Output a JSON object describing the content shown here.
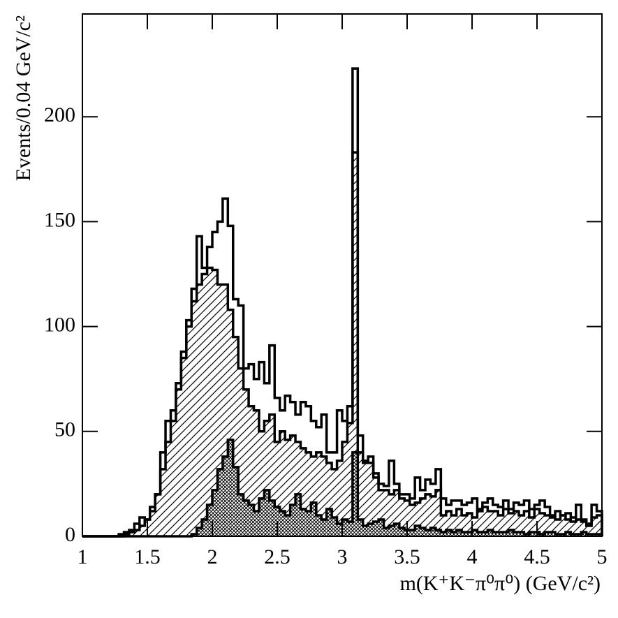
{
  "chart_data": {
    "type": "histogram",
    "xlabel": "m(K⁺K⁻π⁰π⁰) (GeV/c²)",
    "ylabel": "Events/0.04 GeV/c²",
    "bins": [
      1.0,
      1.04,
      1.08,
      1.12,
      1.16,
      1.2,
      1.24,
      1.28,
      1.32,
      1.36,
      1.4,
      1.44,
      1.48,
      1.52,
      1.56,
      1.6,
      1.64,
      1.68,
      1.72,
      1.76,
      1.8,
      1.84,
      1.88,
      1.92,
      1.96,
      2.0,
      2.04,
      2.08,
      2.12,
      2.16,
      2.2,
      2.24,
      2.28,
      2.32,
      2.36,
      2.4,
      2.44,
      2.48,
      2.52,
      2.56,
      2.6,
      2.64,
      2.68,
      2.72,
      2.76,
      2.8,
      2.84,
      2.88,
      2.92,
      2.96,
      3.0,
      3.04,
      3.08,
      3.12,
      3.16,
      3.2,
      3.24,
      3.28,
      3.32,
      3.36,
      3.4,
      3.44,
      3.48,
      3.52,
      3.56,
      3.6,
      3.64,
      3.68,
      3.72,
      3.76,
      3.8,
      3.84,
      3.88,
      3.92,
      3.96,
      4.0,
      4.04,
      4.08,
      4.12,
      4.16,
      4.2,
      4.24,
      4.28,
      4.32,
      4.36,
      4.4,
      4.44,
      4.48,
      4.52,
      4.56,
      4.6,
      4.64,
      4.68,
      4.72,
      4.76,
      4.8,
      4.84,
      4.88,
      4.92,
      4.96,
      5.0
    ],
    "series": [
      {
        "color": "#000000",
        "pattern": "none",
        "values": [
          0,
          0,
          0,
          0,
          0,
          0,
          0,
          1,
          2,
          3,
          6,
          9,
          8,
          14,
          20,
          40,
          55,
          60,
          73,
          88,
          103,
          118,
          143,
          128,
          138,
          145,
          150,
          161,
          148,
          113,
          110,
          80,
          82,
          75,
          83,
          73,
          91,
          66,
          60,
          67,
          64,
          58,
          64,
          62,
          55,
          52,
          58,
          40,
          40,
          60,
          55,
          62,
          223,
          48,
          36,
          38,
          30,
          25,
          24,
          36,
          25,
          20,
          20,
          18,
          28,
          22,
          27,
          25,
          32,
          18,
          15,
          17,
          17,
          15,
          16,
          18,
          13,
          16,
          18,
          15,
          14,
          17,
          13,
          16,
          15,
          17,
          13,
          15,
          17,
          14,
          10,
          12,
          10,
          11,
          9,
          15,
          8,
          6,
          15,
          12
        ]
      },
      {
        "color": "#000000",
        "pattern": "diagonal",
        "values": [
          0,
          0,
          0,
          0,
          0,
          0,
          0,
          0,
          1,
          2,
          3,
          5,
          8,
          12,
          20,
          32,
          45,
          55,
          70,
          85,
          100,
          112,
          120,
          125,
          128,
          127,
          120,
          120,
          108,
          95,
          80,
          70,
          62,
          60,
          50,
          55,
          58,
          45,
          50,
          46,
          48,
          45,
          42,
          40,
          38,
          40,
          38,
          35,
          32,
          36,
          45,
          54,
          183,
          40,
          35,
          35,
          28,
          22,
          22,
          20,
          22,
          18,
          17,
          15,
          16,
          18,
          20,
          19,
          22,
          10,
          12,
          10,
          13,
          10,
          11,
          9,
          12,
          14,
          12,
          12,
          10,
          13,
          11,
          12,
          10,
          12,
          9,
          13,
          11,
          10,
          9,
          8,
          10,
          8,
          7,
          8,
          7,
          5,
          9,
          10
        ]
      },
      {
        "color": "#000000",
        "pattern": "crosshatch",
        "values": [
          0,
          0,
          0,
          0,
          0,
          0,
          0,
          0,
          0,
          0,
          0,
          0,
          0,
          0,
          0,
          0,
          0,
          0,
          0,
          0,
          0,
          1,
          4,
          8,
          15,
          22,
          32,
          38,
          46,
          33,
          20,
          17,
          15,
          12,
          18,
          22,
          17,
          14,
          12,
          10,
          15,
          20,
          13,
          12,
          16,
          10,
          8,
          13,
          9,
          6,
          8,
          7,
          40,
          8,
          5,
          6,
          7,
          8,
          4,
          5,
          6,
          4,
          3,
          3,
          5,
          4,
          3,
          4,
          3,
          2,
          3,
          2,
          3,
          2,
          2,
          3,
          2,
          2,
          3,
          2,
          2,
          2,
          3,
          2,
          2,
          1,
          2,
          2,
          1,
          2,
          2,
          1,
          1,
          2,
          1,
          1,
          2,
          1,
          1,
          1
        ]
      }
    ],
    "xlim": [
      1,
      5
    ],
    "ylim": [
      0,
      249
    ],
    "xticks": [
      1,
      1.5,
      2,
      2.5,
      3,
      3.5,
      4,
      4.5,
      5
    ],
    "yticks": [
      0,
      50,
      100,
      150,
      200
    ]
  }
}
